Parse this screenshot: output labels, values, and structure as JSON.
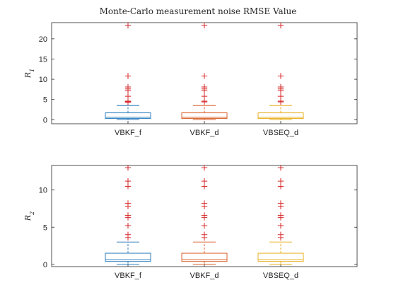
{
  "figure_title": "Monte-Carlo measurement noise RMSE Value",
  "outlier_color": "#d62728",
  "chart_data": [
    {
      "type": "box",
      "ylabel": "R",
      "ylabel_sub": "1",
      "ylim": [
        -1,
        24
      ],
      "yticks": [
        0,
        5,
        10,
        15,
        20
      ],
      "categories": [
        "VBKF_f",
        "VBKF_d",
        "VBSEQ_d"
      ],
      "colors": [
        "#2f7fbf",
        "#d9622b",
        "#e8b020"
      ],
      "series": [
        {
          "name": "VBKF_f",
          "whisker_low": 0,
          "q1": 0.3,
          "median": 0.6,
          "q3": 1.7,
          "whisker_high": 3.5,
          "outliers": [
            23.3,
            10.8,
            8.1,
            7.6,
            7.2,
            5.8,
            4.6,
            4.5,
            4.4,
            4.3
          ]
        },
        {
          "name": "VBKF_d",
          "whisker_low": 0,
          "q1": 0.3,
          "median": 0.6,
          "q3": 1.7,
          "whisker_high": 3.5,
          "outliers": [
            23.3,
            10.8,
            8.1,
            7.6,
            7.2,
            5.8,
            4.6,
            4.4
          ]
        },
        {
          "name": "VBSEQ_d",
          "whisker_low": 0,
          "q1": 0.3,
          "median": 0.6,
          "q3": 1.7,
          "whisker_high": 3.5,
          "outliers": [
            23.3,
            10.8,
            8.1,
            7.6,
            7.2,
            5.8,
            4.6,
            4.4
          ]
        }
      ]
    },
    {
      "type": "box",
      "ylabel": "R",
      "ylabel_sub": "2",
      "ylim": [
        -0.3,
        13.3
      ],
      "yticks": [
        0,
        5,
        10
      ],
      "categories": [
        "VBKF_f",
        "VBKF_d",
        "VBSEQ_d"
      ],
      "colors": [
        "#2f7fbf",
        "#d9622b",
        "#e8b020"
      ],
      "series": [
        {
          "name": "VBKF_f",
          "whisker_low": 0,
          "q1": 0.4,
          "median": 0.6,
          "q3": 1.5,
          "whisker_high": 3.0,
          "outliers": [
            13.0,
            11.2,
            10.5,
            8.2,
            7.8,
            6.6,
            6.3,
            5.2,
            4.0,
            3.6
          ]
        },
        {
          "name": "VBKF_d",
          "whisker_low": 0,
          "q1": 0.4,
          "median": 0.6,
          "q3": 1.5,
          "whisker_high": 3.0,
          "outliers": [
            13.0,
            11.2,
            10.5,
            8.2,
            7.8,
            6.6,
            6.3,
            5.2,
            4.0,
            3.6
          ]
        },
        {
          "name": "VBSEQ_d",
          "whisker_low": 0,
          "q1": 0.4,
          "median": 0.6,
          "q3": 1.5,
          "whisker_high": 3.0,
          "outliers": [
            13.0,
            11.2,
            10.5,
            8.2,
            7.8,
            6.6,
            6.3,
            5.2,
            4.0,
            3.6
          ]
        }
      ]
    }
  ]
}
